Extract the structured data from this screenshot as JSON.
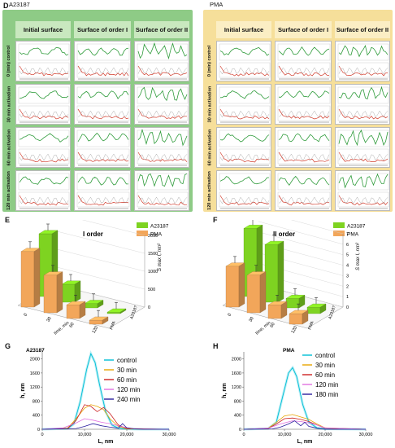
{
  "panels": {
    "D": "D",
    "E": "E",
    "F": "F",
    "G": "G",
    "H": "H"
  },
  "panel_d": {
    "left_group": {
      "title": "A23187",
      "columns": [
        "Initial surface",
        "Surface of order I",
        "Surface of order II"
      ],
      "rows": [
        "0 (min) control",
        "30 min activation",
        "60 min activation",
        "120 min activation"
      ]
    },
    "right_group": {
      "title": "PMA",
      "columns": [
        "Initial surface",
        "Surface of order I",
        "Surface of order II"
      ],
      "rows": [
        "0 (min) control",
        "30 min activation",
        "60 min activation",
        "120 min activation"
      ]
    },
    "colors": {
      "left_bg": "#8ecb86",
      "right_bg": "#f6df9a",
      "profile_green": "#2e9b3a",
      "profile_red": "#d23a2a"
    }
  },
  "chart_data": [
    {
      "panel": "E",
      "type": "bar",
      "title": "I order",
      "categories": [
        "0",
        "30",
        "60",
        "120"
      ],
      "series": [
        {
          "name": "A23187",
          "values": [
            1750,
            500,
            120,
            40
          ]
        },
        {
          "name": "PMA",
          "values": [
            1550,
            1050,
            380,
            110
          ]
        }
      ],
      "ylim": [
        0,
        2000
      ],
      "yticks": [
        "0",
        "500",
        "1000",
        "1500",
        "2000"
      ],
      "xlabel": "time, min",
      "colors": {
        "A23187": "#7ed321",
        "PMA": "#f2a65a"
      }
    },
    {
      "panel": "F",
      "type": "bar",
      "title": "II order",
      "categories": [
        "0",
        "30",
        "60",
        "120"
      ],
      "series": [
        {
          "name": "A23187",
          "values": [
            6.5,
            5.5,
            0.9,
            0.6
          ]
        },
        {
          "name": "PMA",
          "values": [
            3.9,
            3.6,
            1.3,
            1.0
          ]
        }
      ],
      "ylim": [
        0,
        7
      ],
      "yticks": [
        "0",
        "1",
        "2",
        "3",
        "4",
        "5",
        "6",
        "7"
      ],
      "xlabel": "time, min",
      "colors": {
        "A23187": "#7ed321",
        "PMA": "#f2a65a"
      }
    },
    {
      "panel": "G",
      "type": "line",
      "title": "A23187",
      "xlabel": "L, nm",
      "ylabel": "h, nm",
      "xlim": [
        0,
        30000
      ],
      "ylim": [
        0,
        2200
      ],
      "xticks": [
        "0",
        "10,000",
        "20,000",
        "30,000"
      ],
      "yticks": [
        "0",
        "400",
        "800",
        "1200",
        "1600",
        "2000"
      ],
      "legend_position": "top-right",
      "series": [
        {
          "name": "control",
          "color": "#00bfd6",
          "x": [
            0,
            6000,
            7500,
            9000,
            10500,
            11500,
            12500,
            13500,
            15000,
            16500,
            18000,
            20000,
            23000,
            30000
          ],
          "y": [
            0,
            20,
            150,
            800,
            1700,
            2150,
            1900,
            1300,
            500,
            120,
            30,
            10,
            0,
            0
          ]
        },
        {
          "name": "30 min",
          "color": "#e8a400",
          "x": [
            0,
            6000,
            8000,
            10000,
            11500,
            13000,
            14500,
            16000,
            18000,
            20000,
            30000
          ],
          "y": [
            0,
            30,
            300,
            600,
            700,
            650,
            560,
            300,
            80,
            10,
            0
          ]
        },
        {
          "name": "60 min",
          "color": "#cc2020",
          "x": [
            0,
            6000,
            8000,
            10000,
            11500,
            13000,
            14500,
            16000,
            18000,
            20000,
            30000
          ],
          "y": [
            0,
            20,
            250,
            700,
            650,
            500,
            620,
            450,
            120,
            20,
            0
          ]
        },
        {
          "name": "120 min",
          "color": "#e070e0",
          "x": [
            0,
            5000,
            8000,
            10000,
            12000,
            14000,
            16000,
            19000,
            22000,
            30000
          ],
          "y": [
            0,
            40,
            180,
            300,
            260,
            200,
            160,
            70,
            10,
            0
          ]
        },
        {
          "name": "240 min",
          "color": "#2a1f9e",
          "x": [
            0,
            8000,
            10000,
            12000,
            14000,
            16000,
            18000,
            19000,
            20000,
            22000,
            24000,
            26000,
            30000
          ],
          "y": [
            0,
            20,
            80,
            160,
            100,
            60,
            30,
            160,
            40,
            10,
            0,
            0,
            0
          ]
        }
      ]
    },
    {
      "panel": "H",
      "type": "line",
      "title": "PMA",
      "xlabel": "L, nm",
      "ylabel": "h, nm",
      "xlim": [
        0,
        30000
      ],
      "ylim": [
        0,
        2200
      ],
      "xticks": [
        "0",
        "10,000",
        "20,000",
        "30,000"
      ],
      "yticks": [
        "0",
        "400",
        "800",
        "1200",
        "1600",
        "2000"
      ],
      "legend_position": "top-right",
      "series": [
        {
          "name": "control",
          "color": "#00bfd6",
          "x": [
            0,
            6000,
            8000,
            9500,
            11000,
            12000,
            13000,
            14500,
            16000,
            18000,
            20000,
            30000
          ],
          "y": [
            0,
            20,
            200,
            900,
            1600,
            1750,
            1500,
            700,
            200,
            40,
            10,
            0
          ]
        },
        {
          "name": "30 min",
          "color": "#e8a400",
          "x": [
            0,
            6000,
            8000,
            10000,
            12000,
            14000,
            16000,
            18000,
            20000,
            30000
          ],
          "y": [
            0,
            30,
            200,
            380,
            420,
            350,
            280,
            150,
            40,
            0
          ]
        },
        {
          "name": "60 min",
          "color": "#cc2020",
          "x": [
            0,
            6000,
            8000,
            10000,
            12000,
            14000,
            16000,
            18000,
            20000,
            30000
          ],
          "y": [
            0,
            20,
            150,
            300,
            320,
            280,
            220,
            120,
            30,
            0
          ]
        },
        {
          "name": "120 min",
          "color": "#e070e0",
          "x": [
            0,
            6000,
            9000,
            12000,
            14000,
            16000,
            18000,
            20000,
            30000
          ],
          "y": [
            0,
            30,
            150,
            240,
            220,
            180,
            120,
            40,
            0
          ]
        },
        {
          "name": "180 min",
          "color": "#2a1f9e",
          "x": [
            0,
            7000,
            9000,
            11000,
            12500,
            14000,
            15000,
            16000,
            18000,
            20000,
            30000
          ],
          "y": [
            0,
            10,
            60,
            150,
            240,
            100,
            200,
            80,
            30,
            0,
            0
          ]
        }
      ]
    }
  ]
}
